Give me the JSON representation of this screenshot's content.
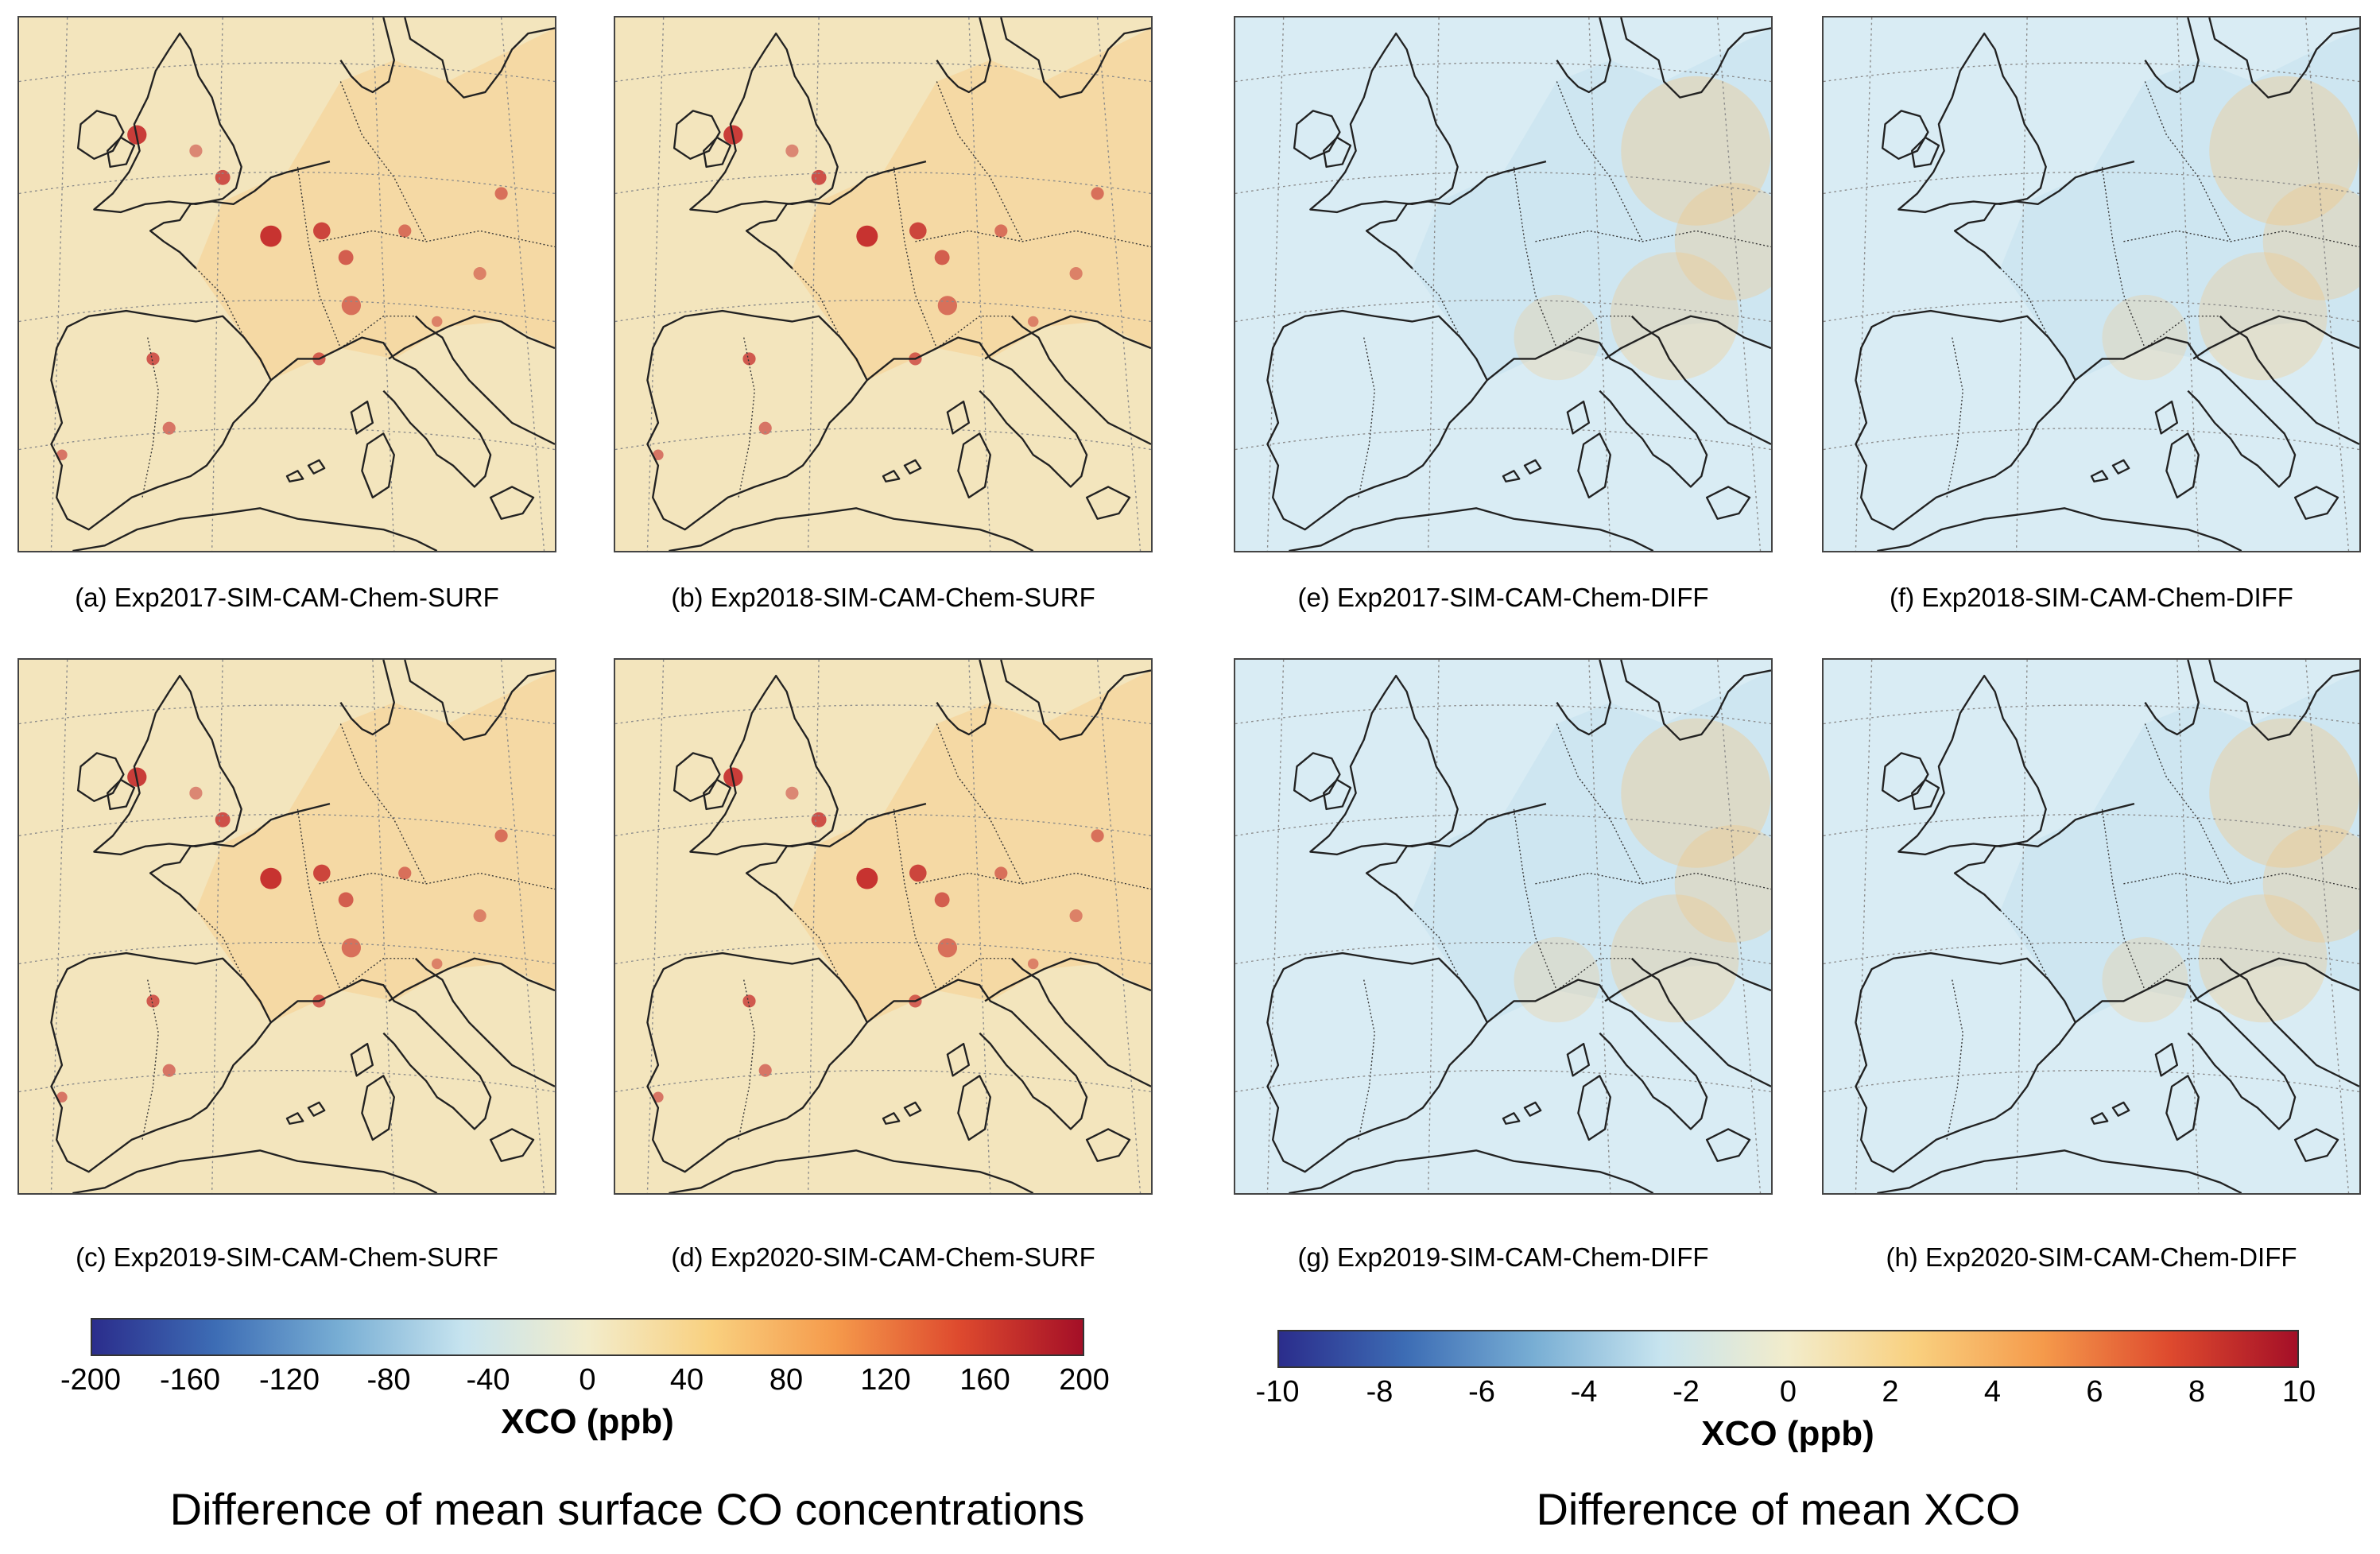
{
  "panels": [
    {
      "id": "a",
      "caption": "(a) Exp2017-SIM-CAM-Chem-SURF",
      "variable": "surface CO",
      "year": "2017"
    },
    {
      "id": "b",
      "caption": "(b) Exp2018-SIM-CAM-Chem-SURF",
      "variable": "surface CO",
      "year": "2018"
    },
    {
      "id": "c",
      "caption": "(c) Exp2019-SIM-CAM-Chem-SURF",
      "variable": "surface CO",
      "year": "2019"
    },
    {
      "id": "d",
      "caption": "(d) Exp2020-SIM-CAM-Chem-SURF",
      "variable": "surface CO",
      "year": "2020"
    },
    {
      "id": "e",
      "caption": "(e) Exp2017-SIM-CAM-Chem-DIFF",
      "variable": "XCO",
      "year": "2017"
    },
    {
      "id": "f",
      "caption": "(f) Exp2018-SIM-CAM-Chem-DIFF",
      "variable": "XCO",
      "year": "2018"
    },
    {
      "id": "g",
      "caption": "(g) Exp2019-SIM-CAM-Chem-DIFF",
      "variable": "XCO",
      "year": "2019"
    },
    {
      "id": "h",
      "caption": "(h) Exp2020-SIM-CAM-Chem-DIFF",
      "variable": "XCO",
      "year": "2020"
    }
  ],
  "colorbars": {
    "surface": {
      "label": "XCO (ppb)",
      "min": -200,
      "max": 200,
      "ticks": [
        "-200",
        "-160",
        "-120",
        "-80",
        "-40",
        "0",
        "40",
        "80",
        "120",
        "160",
        "200"
      ]
    },
    "column": {
      "label": "XCO (ppb)",
      "min": -10,
      "max": 10,
      "ticks": [
        "-10",
        "-8",
        "-6",
        "-4",
        "-2",
        "0",
        "2",
        "4",
        "6",
        "8",
        "10"
      ]
    },
    "colormap": [
      "#2b2d8c",
      "#3d6db5",
      "#78aed4",
      "#c7e4ef",
      "#f2eccb",
      "#f9d07f",
      "#f59a4b",
      "#de4a2e",
      "#a40f27"
    ]
  },
  "titles": {
    "left": "Difference of mean surface CO concentrations",
    "right": "Difference of mean XCO"
  },
  "map_colors": {
    "surface_background": "#f3e5bd",
    "column_background": "#d9ecf4",
    "coast": "#222222",
    "grid": "#8a8a8a"
  }
}
